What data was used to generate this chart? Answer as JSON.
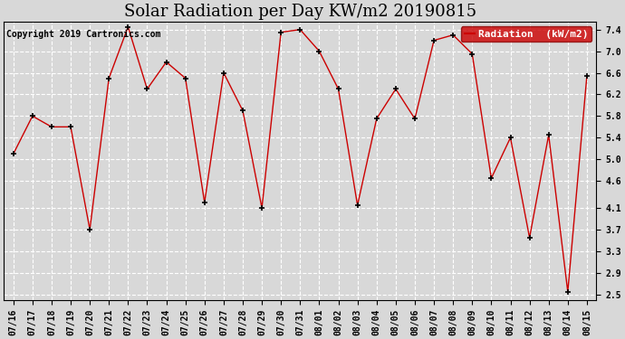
{
  "title": "Solar Radiation per Day KW/m2 20190815",
  "copyright": "Copyright 2019 Cartronics.com",
  "legend_label": "Radiation  (kW/m2)",
  "dates": [
    "07/16",
    "07/17",
    "07/18",
    "07/19",
    "07/20",
    "07/21",
    "07/22",
    "07/23",
    "07/24",
    "07/25",
    "07/26",
    "07/27",
    "07/28",
    "07/29",
    "07/30",
    "07/31",
    "08/01",
    "08/02",
    "08/03",
    "08/04",
    "08/05",
    "08/06",
    "08/07",
    "08/08",
    "08/09",
    "08/10",
    "08/11",
    "08/12",
    "08/13",
    "08/14",
    "08/15"
  ],
  "values": [
    5.1,
    5.8,
    5.6,
    5.6,
    3.7,
    6.5,
    7.45,
    6.3,
    6.8,
    6.5,
    4.2,
    6.6,
    5.9,
    4.1,
    7.35,
    7.4,
    7.0,
    6.3,
    4.15,
    5.75,
    6.3,
    5.75,
    7.2,
    7.3,
    6.95,
    4.65,
    5.4,
    3.55,
    5.45,
    2.55,
    6.55
  ],
  "line_color": "#cc0000",
  "marker_color": "black",
  "plot_bg_color": "#d8d8d8",
  "fig_bg_color": "#d8d8d8",
  "grid_color": "#ffffff",
  "ylim_low": 2.4,
  "ylim_high": 7.55,
  "yticks": [
    2.5,
    2.9,
    3.3,
    3.7,
    4.1,
    4.6,
    5.0,
    5.4,
    5.8,
    6.2,
    6.6,
    7.0,
    7.4
  ],
  "title_fontsize": 13,
  "copyright_fontsize": 7,
  "tick_fontsize": 7,
  "legend_bg_color": "#cc0000",
  "legend_text_color": "white",
  "legend_fontsize": 8
}
